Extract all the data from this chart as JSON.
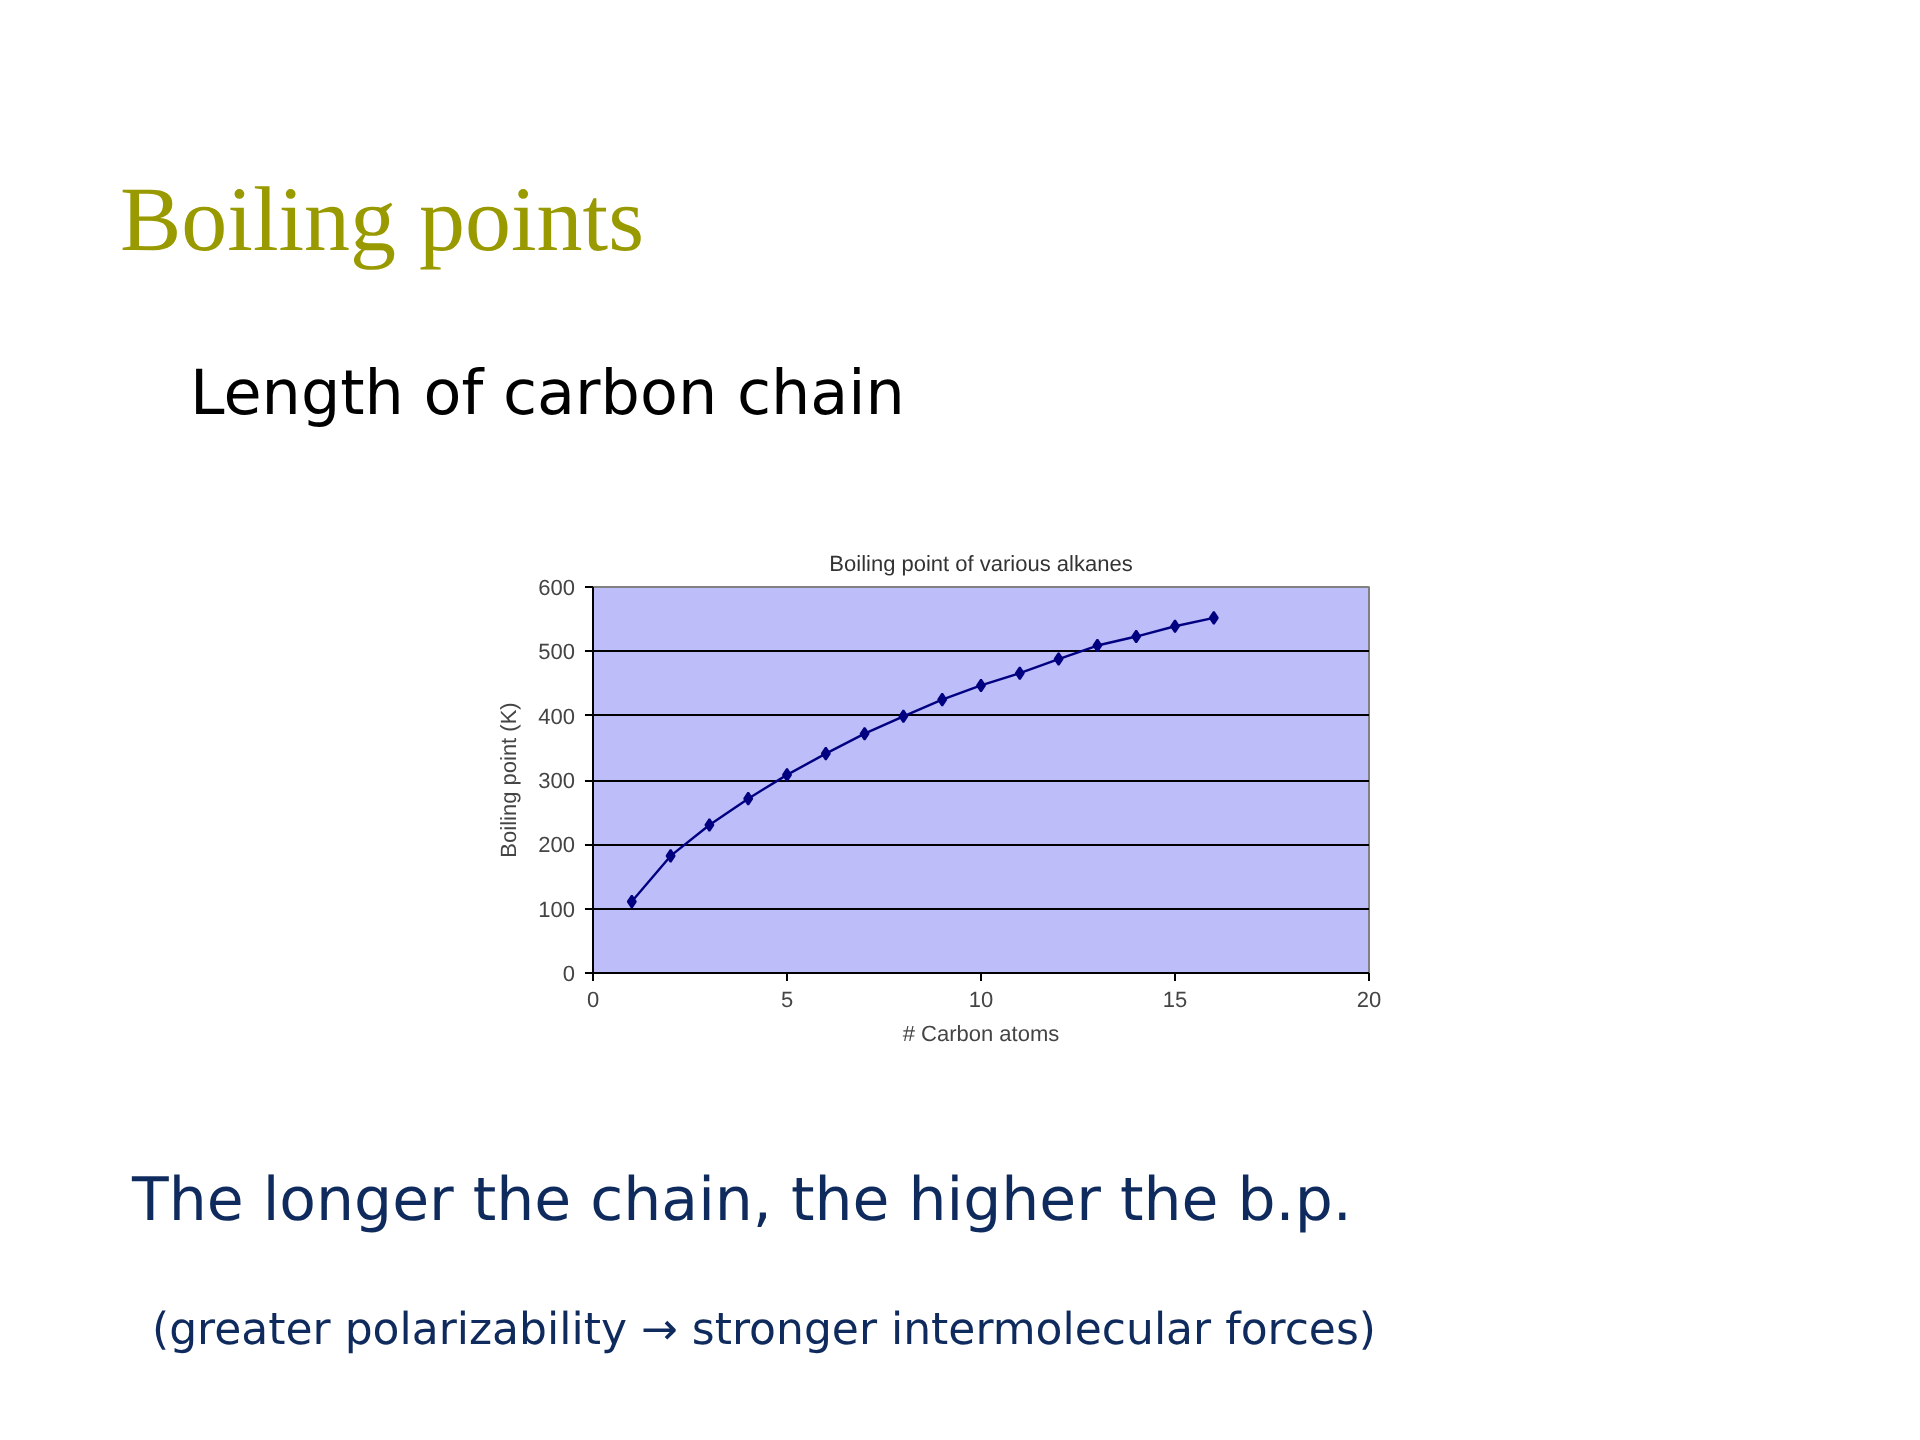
{
  "chart_data": {
    "type": "line",
    "title": "Boiling point of various alkanes",
    "xlabel": "# Carbon atoms",
    "ylabel": "Boiling point (K)",
    "x": [
      1,
      2,
      3,
      4,
      5,
      6,
      7,
      8,
      9,
      10,
      11,
      12,
      13,
      14,
      15,
      16
    ],
    "series": [
      {
        "color": "#000080",
        "values": [
          111,
          182,
          230,
          271,
          308,
          341,
          372,
          399,
          425,
          447,
          466,
          488,
          509,
          523,
          539,
          552
        ]
      }
    ],
    "xlim": [
      0,
      20
    ],
    "xticks": [
      0,
      5,
      10,
      15,
      20
    ],
    "ylim": [
      0,
      600
    ],
    "yticks": [
      0,
      100,
      200,
      300,
      400,
      500,
      600
    ],
    "grid": "y",
    "marker": "diamond",
    "line_style": "solid",
    "annotations": [
      "Boiling points",
      "Length of carbon chain",
      "The longer the chain, the higher the b.p.",
      "(greater polarizability → stronger intermolecular forces)"
    ]
  }
}
